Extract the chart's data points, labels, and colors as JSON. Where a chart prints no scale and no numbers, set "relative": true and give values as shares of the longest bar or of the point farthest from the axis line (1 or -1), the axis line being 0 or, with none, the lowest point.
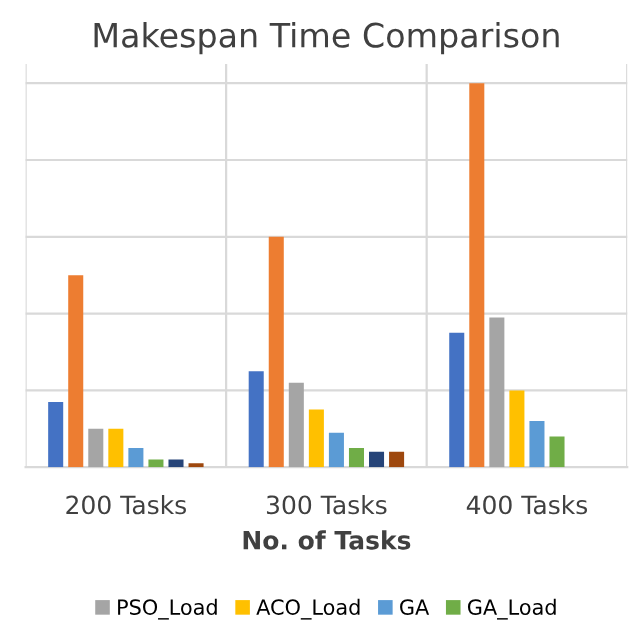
{
  "chart_data": {
    "type": "bar",
    "title": "Makespan Time Comparison",
    "xlabel": "No. of Tasks",
    "relative": true,
    "grid": true,
    "legend": "bottom",
    "categories": [
      "200 Tasks",
      "300 Tasks",
      "400 Tasks"
    ],
    "series": [
      {
        "color": "#4472c4",
        "values": [
          0.17,
          0.25,
          0.35
        ]
      },
      {
        "color": "#ed7d31",
        "values": [
          0.5,
          0.6,
          1
        ]
      },
      {
        "name": "PSO_Load",
        "color": "#a5a5a5",
        "values": [
          0.1,
          0.22,
          0.39
        ]
      },
      {
        "name": "ACO_Load",
        "color": "#ffc000",
        "values": [
          0.1,
          0.15,
          0.2
        ]
      },
      {
        "name": "GA",
        "color": "#5b9bd5",
        "values": [
          0.05,
          0.09,
          0.12
        ]
      },
      {
        "name": "GA_Load",
        "color": "#70ad47",
        "values": [
          0.02,
          0.05,
          0.08
        ]
      },
      {
        "color": "#264478",
        "values": [
          0.02,
          0.04,
          null
        ]
      },
      {
        "color": "#9e480e",
        "values": [
          0.01,
          0.04,
          null
        ]
      }
    ]
  }
}
